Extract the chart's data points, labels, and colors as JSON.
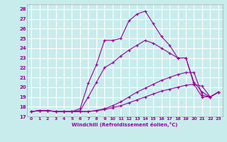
{
  "xlabel": "Windchill (Refroidissement éolien,°C)",
  "ylabel": "",
  "background_color": "#c8ecec",
  "grid_color": "#ffffff",
  "line_color": "#990099",
  "xlim": [
    -0.5,
    23.5
  ],
  "ylim": [
    17,
    28.5
  ],
  "xticks": [
    0,
    1,
    2,
    3,
    4,
    5,
    6,
    7,
    8,
    9,
    10,
    11,
    12,
    13,
    14,
    15,
    16,
    17,
    18,
    19,
    20,
    21,
    22,
    23
  ],
  "yticks": [
    17,
    18,
    19,
    20,
    21,
    22,
    23,
    24,
    25,
    26,
    27,
    28
  ],
  "lines": [
    {
      "x": [
        0,
        1,
        2,
        3,
        4,
        5,
        6,
        7,
        8,
        9,
        10,
        11,
        12,
        13,
        14,
        15,
        16,
        17,
        18,
        19,
        20,
        21,
        22,
        23
      ],
      "y": [
        17.5,
        17.6,
        17.6,
        17.5,
        17.5,
        17.5,
        17.5,
        17.5,
        17.6,
        17.8,
        18.1,
        18.5,
        19.0,
        19.5,
        19.9,
        20.3,
        20.7,
        21.0,
        21.3,
        21.5,
        21.5,
        19.2,
        19.0,
        19.5
      ]
    },
    {
      "x": [
        0,
        1,
        2,
        3,
        4,
        5,
        6,
        7,
        8,
        9,
        10,
        11,
        12,
        13,
        14,
        15,
        16,
        17,
        18,
        19,
        20,
        21,
        22,
        23
      ],
      "y": [
        17.5,
        17.6,
        17.6,
        17.5,
        17.5,
        17.5,
        17.5,
        17.5,
        17.6,
        17.7,
        17.9,
        18.1,
        18.4,
        18.7,
        19.0,
        19.3,
        19.6,
        19.8,
        20.0,
        20.2,
        20.3,
        20.1,
        19.0,
        19.5
      ]
    },
    {
      "x": [
        0,
        1,
        2,
        3,
        4,
        5,
        6,
        7,
        8,
        9,
        10,
        11,
        12,
        13,
        14,
        15,
        16,
        17,
        18,
        19,
        20,
        21,
        22,
        23
      ],
      "y": [
        17.5,
        17.6,
        17.6,
        17.5,
        17.5,
        17.5,
        17.6,
        19.0,
        20.5,
        22.0,
        22.5,
        23.2,
        23.8,
        24.3,
        24.8,
        24.5,
        24.0,
        23.5,
        23.0,
        23.0,
        20.5,
        19.5,
        19.0,
        19.5
      ]
    },
    {
      "x": [
        0,
        1,
        2,
        3,
        4,
        5,
        6,
        7,
        8,
        9,
        10,
        11,
        12,
        13,
        14,
        15,
        16,
        17,
        18,
        19,
        20,
        21,
        22,
        23
      ],
      "y": [
        17.5,
        17.6,
        17.6,
        17.5,
        17.5,
        17.5,
        17.8,
        20.4,
        22.3,
        24.8,
        24.8,
        25.0,
        26.8,
        27.5,
        27.8,
        26.5,
        25.2,
        24.3,
        23.0,
        23.0,
        20.3,
        19.0,
        19.0,
        19.5
      ]
    }
  ]
}
